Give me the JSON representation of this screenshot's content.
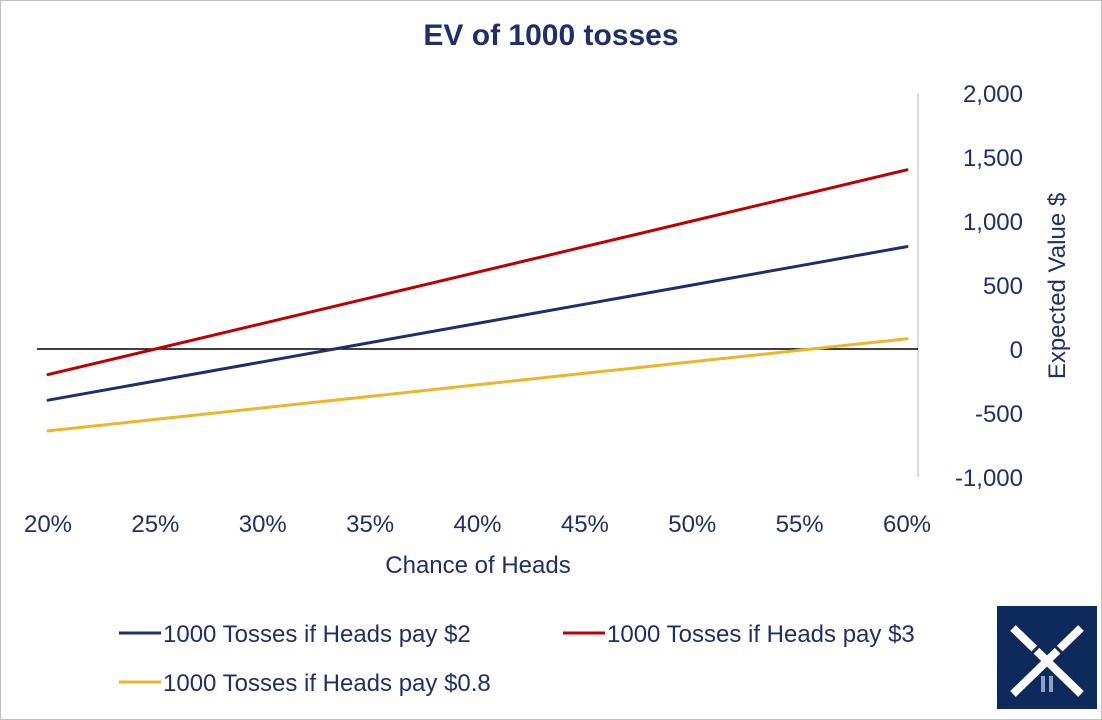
{
  "chart_data": {
    "type": "line",
    "title": "EV of 1000 tosses",
    "xlabel": "Chance of Heads",
    "ylabel": "Expected Value $",
    "x": [
      0.2,
      0.25,
      0.3,
      0.35,
      0.4,
      0.45,
      0.5,
      0.55,
      0.6
    ],
    "x_tick_labels": [
      "20%",
      "25%",
      "30%",
      "35%",
      "40%",
      "45%",
      "50%",
      "55%",
      "60%"
    ],
    "xlim": [
      0.2,
      0.6
    ],
    "ylim": [
      -1000,
      2000
    ],
    "y_ticks": [
      2000,
      1500,
      1000,
      500,
      0,
      -500,
      -1000
    ],
    "y_tick_labels": [
      "2,000",
      "1,500",
      "1,000",
      "500",
      "0",
      "-500",
      "-1,000"
    ],
    "y_axis_position": "right",
    "series": [
      {
        "name": "1000 Tosses if Heads pay $2",
        "color": "#1f2f6b",
        "values": [
          -400,
          -250,
          -100,
          50,
          200,
          350,
          500,
          650,
          800
        ]
      },
      {
        "name": "1000 Tosses if Heads pay $3",
        "color": "#c00000",
        "values": [
          -200,
          0,
          200,
          400,
          600,
          800,
          1000,
          1200,
          1400
        ]
      },
      {
        "name": "1000 Tosses if Heads pay $0.8",
        "color": "#f0b429",
        "values": [
          -640,
          -550,
          -460,
          -370,
          -280,
          -190,
          -100,
          -10,
          80
        ]
      }
    ]
  }
}
